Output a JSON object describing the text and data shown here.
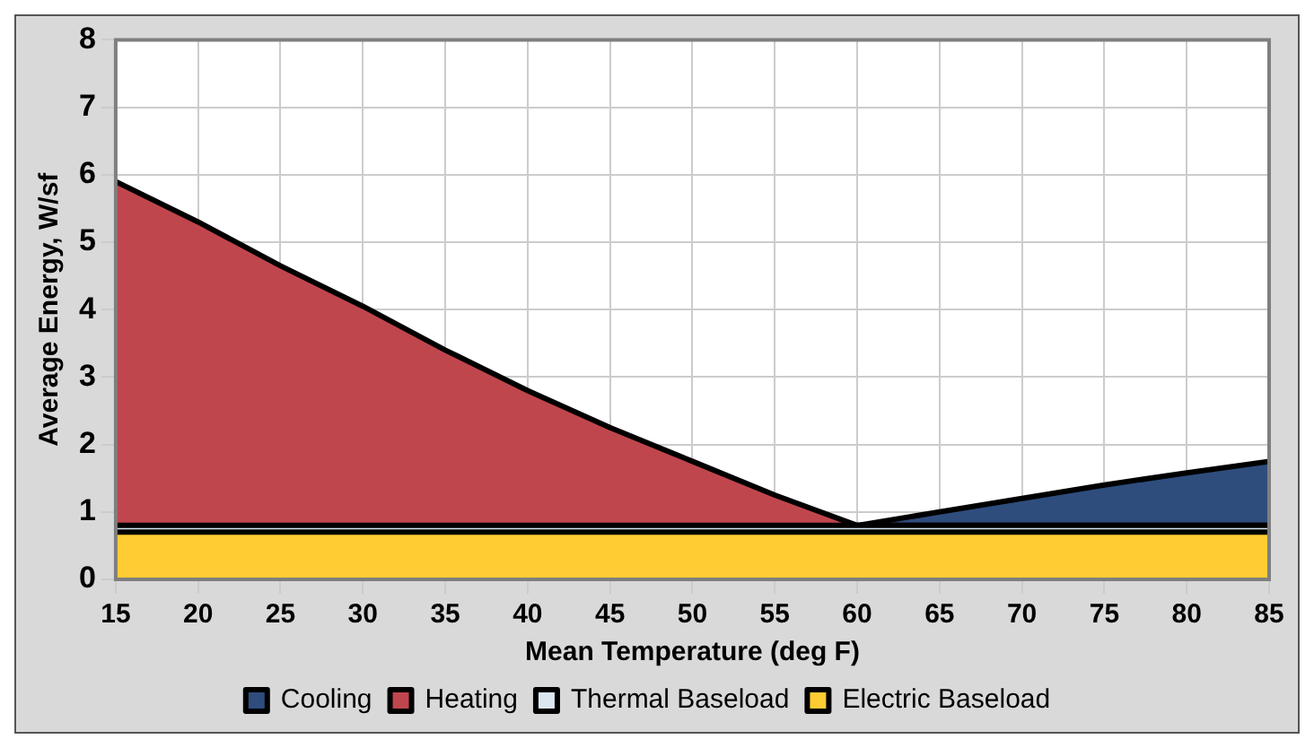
{
  "chart_data": {
    "type": "area",
    "xlabel": "Mean Temperature (deg F)",
    "ylabel": "Average Energy, W/sf",
    "x": [
      15,
      20,
      25,
      30,
      35,
      40,
      45,
      50,
      55,
      60,
      65,
      70,
      75,
      80,
      85
    ],
    "series": [
      {
        "name": "Electric Baseload",
        "color": "#ffcc33",
        "values": [
          0.7,
          0.7,
          0.7,
          0.7,
          0.7,
          0.7,
          0.7,
          0.7,
          0.7,
          0.7,
          0.7,
          0.7,
          0.7,
          0.7,
          0.7
        ]
      },
      {
        "name": "Thermal Baseload",
        "color": "#dbe6f0",
        "values": [
          0.1,
          0.1,
          0.1,
          0.1,
          0.1,
          0.1,
          0.1,
          0.1,
          0.1,
          0.1,
          0.1,
          0.1,
          0.1,
          0.1,
          0.1
        ]
      },
      {
        "name": "Heating",
        "color": "#c0464e",
        "values": [
          5.1,
          4.5,
          3.85,
          3.25,
          2.6,
          2.0,
          1.45,
          0.95,
          0.45,
          0,
          0,
          0,
          0,
          0,
          0
        ]
      },
      {
        "name": "Cooling",
        "color": "#2e4d7d",
        "values": [
          null,
          null,
          null,
          null,
          null,
          null,
          null,
          null,
          null,
          0,
          0.2,
          0.4,
          0.6,
          0.78,
          0.95
        ]
      }
    ],
    "stacked": true,
    "xlim": [
      15,
      85
    ],
    "xticks": [
      15,
      20,
      25,
      30,
      35,
      40,
      45,
      50,
      55,
      60,
      65,
      70,
      75,
      80,
      85
    ],
    "ylim": [
      0,
      8
    ],
    "yticks": [
      0,
      1,
      2,
      3,
      4,
      5,
      6,
      7,
      8
    ],
    "grid": true,
    "legend": "bottom",
    "marker": "none"
  }
}
